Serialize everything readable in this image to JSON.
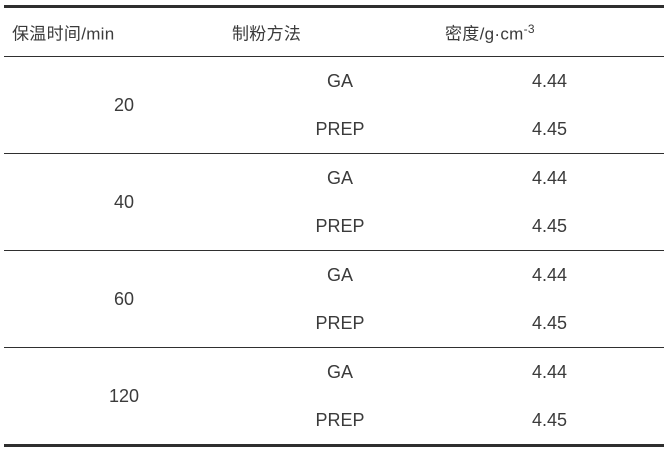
{
  "colors": {
    "text": "#3b3b3b",
    "line": "#2f2f2f",
    "background": "#ffffff"
  },
  "table": {
    "headers": {
      "holding_time": "保温时间/min",
      "method": "制粉方法",
      "density_base": "密度/g·cm",
      "density_exponent": "-3"
    },
    "groups": [
      {
        "time": "20",
        "rows": [
          {
            "method": "GA",
            "density": "4.44"
          },
          {
            "method": "PREP",
            "density": "4.45"
          }
        ]
      },
      {
        "time": "40",
        "rows": [
          {
            "method": "GA",
            "density": "4.44"
          },
          {
            "method": "PREP",
            "density": "4.45"
          }
        ]
      },
      {
        "time": "60",
        "rows": [
          {
            "method": "GA",
            "density": "4.44"
          },
          {
            "method": "PREP",
            "density": "4.45"
          }
        ]
      },
      {
        "time": "120",
        "rows": [
          {
            "method": "GA",
            "density": "4.44"
          },
          {
            "method": "PREP",
            "density": "4.45"
          }
        ]
      }
    ]
  },
  "chart_data": {
    "type": "table",
    "columns": [
      "保温时间/min",
      "制粉方法",
      "密度/g·cm⁻³"
    ],
    "rows": [
      [
        "20",
        "GA",
        "4.44"
      ],
      [
        "20",
        "PREP",
        "4.45"
      ],
      [
        "40",
        "GA",
        "4.44"
      ],
      [
        "40",
        "PREP",
        "4.45"
      ],
      [
        "60",
        "GA",
        "4.44"
      ],
      [
        "60",
        "PREP",
        "4.45"
      ],
      [
        "120",
        "GA",
        "4.44"
      ],
      [
        "120",
        "PREP",
        "4.45"
      ]
    ]
  }
}
